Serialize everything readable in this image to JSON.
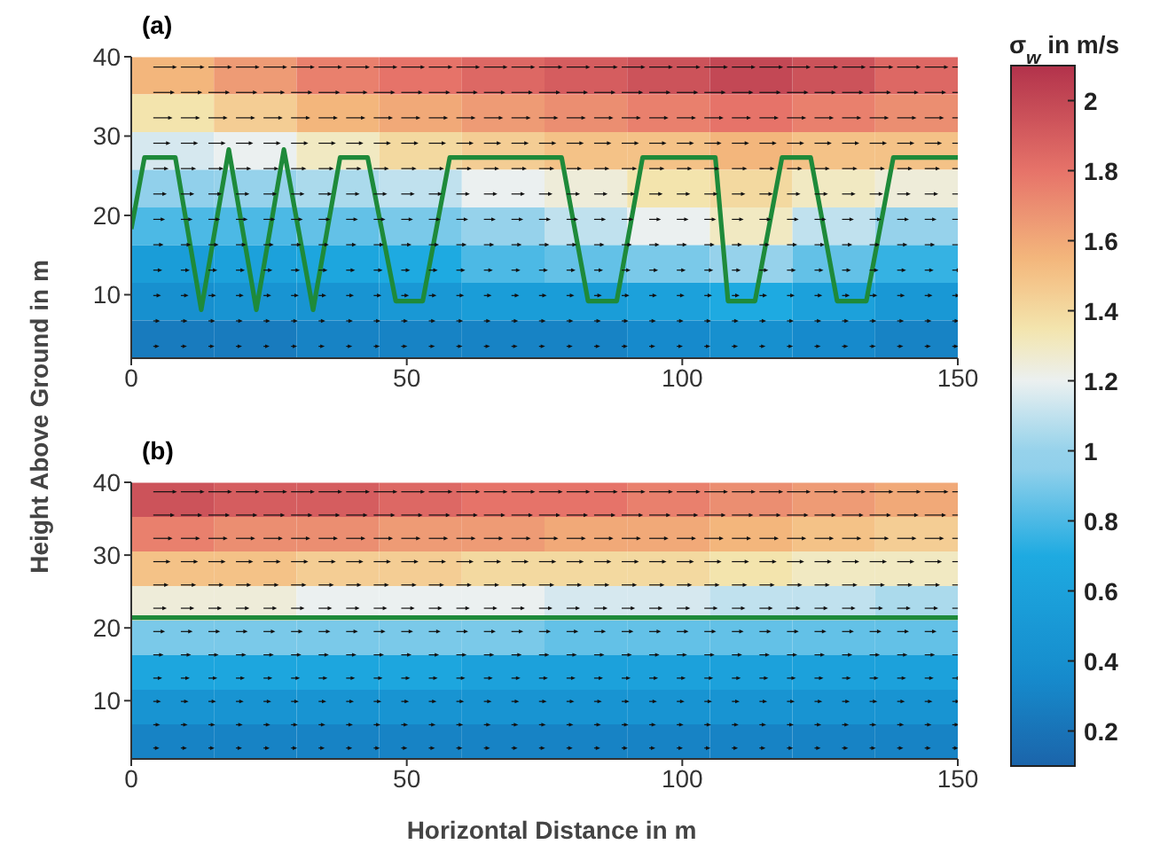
{
  "chart_data": [
    {
      "type": "heatmap",
      "title": "(a)",
      "ylabel": "Height Above Ground in m",
      "clabel": "σ$_{w}$ in m/s",
      "x": [
        7.5,
        22.5,
        37.5,
        52.5,
        67.5,
        82.5,
        97.5,
        112.5,
        127.5,
        142.5
      ],
      "y": [
        37.6,
        32.9,
        28.1,
        23.4,
        18.6,
        13.9,
        9.1,
        4.4
      ],
      "cells": [
        [
          1.55,
          1.65,
          1.75,
          1.8,
          1.85,
          1.9,
          1.95,
          2.0,
          1.95,
          1.85
        ],
        [
          1.35,
          1.45,
          1.55,
          1.6,
          1.65,
          1.7,
          1.75,
          1.8,
          1.75,
          1.7
        ],
        [
          1.15,
          1.2,
          1.3,
          1.4,
          1.45,
          1.5,
          1.5,
          1.55,
          1.5,
          1.5
        ],
        [
          0.95,
          1.0,
          1.05,
          1.1,
          1.2,
          1.25,
          1.35,
          1.4,
          1.3,
          1.25
        ],
        [
          0.8,
          0.8,
          0.85,
          0.9,
          1.0,
          1.1,
          1.2,
          1.3,
          1.1,
          1.0
        ],
        [
          0.55,
          0.6,
          0.65,
          0.7,
          0.8,
          0.85,
          0.9,
          1.0,
          0.85,
          0.75
        ],
        [
          0.4,
          0.45,
          0.45,
          0.5,
          0.55,
          0.55,
          0.6,
          0.7,
          0.6,
          0.5
        ],
        [
          0.25,
          0.25,
          0.3,
          0.3,
          0.3,
          0.3,
          0.35,
          0.4,
          0.35,
          0.3
        ]
      ],
      "clim": [
        0.1,
        2.1
      ],
      "cticks": [
        1.2,
        1.4,
        1.6,
        1.8,
        2
      ],
      "xlim": [
        0,
        150
      ],
      "ylim": [
        2,
        40
      ],
      "xticks": [
        0,
        50,
        100,
        150
      ],
      "yticks": [
        10,
        20,
        30,
        40
      ],
      "series": [
        {
          "type": "line",
          "color": "#1e8a3a",
          "x": [
            0,
            2.4,
            8.0,
            12.7,
            17.7,
            22.7,
            27.7,
            33.0,
            37.9,
            42.9,
            48.0,
            52.9,
            57.8,
            78.1,
            82.9,
            88.1,
            92.8,
            106.0,
            108.3,
            113.2,
            118.1,
            123.3,
            128.1,
            133.4,
            138.3,
            150
          ],
          "values": [
            18.3,
            27.3,
            27.3,
            8.1,
            28.3,
            8.1,
            28.3,
            8.1,
            27.3,
            27.3,
            9.2,
            9.2,
            27.3,
            27.3,
            9.2,
            9.2,
            27.3,
            27.3,
            9.2,
            9.2,
            27.3,
            27.3,
            9.2,
            9.2,
            27.3,
            27.3
          ]
        }
      ]
    },
    {
      "type": "heatmap",
      "title": "(b)",
      "xlabel": "Horizontal Distance in m",
      "x": [
        7.5,
        22.5,
        37.5,
        52.5,
        67.5,
        82.5,
        97.5,
        112.5,
        127.5,
        142.5
      ],
      "y": [
        37.6,
        32.9,
        28.1,
        23.4,
        18.6,
        13.9,
        9.1,
        4.4
      ],
      "cells": [
        [
          1.95,
          1.9,
          1.9,
          1.85,
          1.8,
          1.8,
          1.75,
          1.7,
          1.65,
          1.6
        ],
        [
          1.75,
          1.7,
          1.7,
          1.65,
          1.65,
          1.6,
          1.6,
          1.55,
          1.5,
          1.45
        ],
        [
          1.5,
          1.5,
          1.45,
          1.45,
          1.4,
          1.4,
          1.4,
          1.35,
          1.3,
          1.3
        ],
        [
          1.25,
          1.25,
          1.2,
          1.2,
          1.2,
          1.15,
          1.15,
          1.1,
          1.1,
          1.05
        ],
        [
          0.9,
          0.9,
          0.9,
          0.9,
          0.9,
          0.85,
          0.85,
          0.85,
          0.85,
          0.85
        ],
        [
          0.65,
          0.65,
          0.65,
          0.65,
          0.6,
          0.6,
          0.6,
          0.6,
          0.6,
          0.6
        ],
        [
          0.45,
          0.45,
          0.45,
          0.45,
          0.45,
          0.45,
          0.45,
          0.45,
          0.45,
          0.45
        ],
        [
          0.3,
          0.3,
          0.3,
          0.3,
          0.3,
          0.3,
          0.3,
          0.3,
          0.3,
          0.3
        ]
      ],
      "clim": [
        0.1,
        2.1
      ],
      "cticks": [
        0.2,
        0.4,
        0.6,
        0.8,
        1
      ],
      "xlim": [
        0,
        150
      ],
      "ylim": [
        2,
        40
      ],
      "xticks": [
        0,
        50,
        100,
        150
      ],
      "yticks": [
        10,
        20,
        30,
        40
      ],
      "series": [
        {
          "type": "line",
          "color": "#1e8a3a",
          "x": [
            0,
            150
          ],
          "values": [
            21.4,
            21.4
          ]
        }
      ]
    }
  ]
}
